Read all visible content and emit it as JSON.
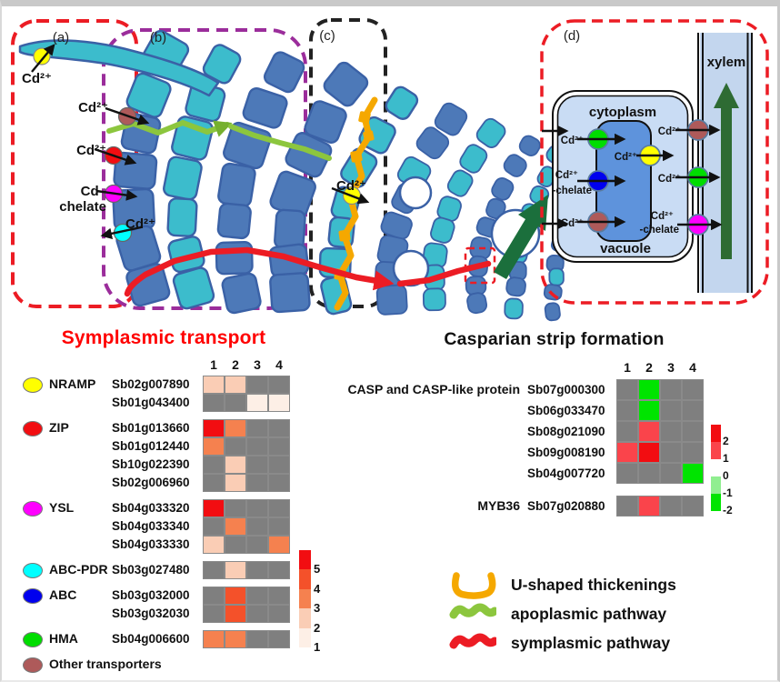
{
  "diagram": {
    "panel_labels": {
      "a": "(a)",
      "b": "(b)",
      "c": "(c)",
      "d": "(d)"
    },
    "labels": {
      "cd_root_hair": "Cd²⁺",
      "cd_influx_top": "Cd²⁺",
      "cd_influx_mid": "Cd²⁺",
      "cd_chelate_l1": "Cd–",
      "cd_chelate_l2": "chelate",
      "cd_efflux": "Cd²⁺",
      "cd_casparian": "Cd²⁺"
    },
    "panel_d": {
      "cytoplasm": "cytoplasm",
      "vacuole": "vacuole",
      "xylem": "xylem",
      "cd_vac_in_top": "Cd²⁺",
      "cd_vac_out": "Cd²⁺",
      "cd_chel_l1": "Cd²⁺",
      "cd_chel_l2": "-chelate",
      "cd_vac_in_bot": "Cd²⁺",
      "cd_xyl_top": "Cd²⁺",
      "cd_xyl_mid": "Cd²⁺",
      "cd_xyl_bot_l1": "Cd²⁺",
      "cd_xyl_bot_l2": "-chelate"
    },
    "colors": {
      "cell_blue": "#4D79B8",
      "cell_teal": "#3CBCCC",
      "cell_stroke": "#3A61A6",
      "box_a": "#EC1C24",
      "box_b": "#9B2D9B",
      "box_c": "#222222",
      "apoplasmic": "#8CC63E",
      "symplasmic": "#EC1C24",
      "thickenings": "#F5A800",
      "cytoplasm": "#C9DCF4",
      "vacuole_fill": "#5E93DC",
      "xylem_fill": "#C3D6EE",
      "big_arrow_green": "#1B6F3C"
    }
  },
  "symplasmic": {
    "title": "Symplasmic transport",
    "columns": [
      "1",
      "2",
      "3",
      "4"
    ],
    "families": [
      {
        "name": "NRAMP",
        "color": "#FFFF00",
        "genes": [
          {
            "id": "Sb02g007890",
            "values": [
              2,
              2,
              null,
              null
            ]
          },
          {
            "id": "Sb01g043400",
            "values": [
              null,
              null,
              1,
              1
            ]
          }
        ]
      },
      {
        "name": "ZIP",
        "color": "#F20D11",
        "genes": [
          {
            "id": "Sb01g013660",
            "values": [
              5,
              3,
              null,
              null
            ]
          },
          {
            "id": "Sb01g012440",
            "values": [
              3,
              null,
              null,
              null
            ]
          },
          {
            "id": "Sb10g022390",
            "values": [
              null,
              2,
              null,
              null
            ]
          },
          {
            "id": "Sb02g006960",
            "values": [
              null,
              2,
              null,
              null
            ]
          }
        ]
      },
      {
        "name": "YSL",
        "color": "#FF00FF",
        "genes": [
          {
            "id": "Sb04g033320",
            "values": [
              5,
              null,
              null,
              null
            ]
          },
          {
            "id": "Sb04g033340",
            "values": [
              null,
              3,
              null,
              null
            ]
          },
          {
            "id": "Sb04g033330",
            "values": [
              2,
              null,
              null,
              3
            ]
          }
        ]
      },
      {
        "name": "ABC-PDR",
        "color": "#00FFFF",
        "genes": [
          {
            "id": "Sb03g027480",
            "values": [
              null,
              2,
              null,
              null
            ]
          }
        ]
      },
      {
        "name": "ABC",
        "color": "#0000EE",
        "genes": [
          {
            "id": "Sb03g032000",
            "values": [
              null,
              4,
              null,
              null
            ]
          },
          {
            "id": "Sb03g032030",
            "values": [
              null,
              4,
              null,
              null
            ]
          }
        ]
      },
      {
        "name": "HMA",
        "color": "#00DD00",
        "genes": [
          {
            "id": "Sb04g006600",
            "values": [
              3,
              3,
              null,
              null
            ]
          }
        ]
      },
      {
        "name": "Other transporters",
        "color": "#AE5A5A",
        "genes": []
      }
    ],
    "scale": {
      "order": [
        5,
        4,
        3,
        2,
        1
      ],
      "colors": {
        "5": "#F20D11",
        "4": "#F4512A",
        "3": "#F5814F",
        "2": "#FACDB5",
        "1": "#FDEFE6"
      },
      "na_color": "#7F7F7F"
    }
  },
  "casparian": {
    "title": "Casparian strip formation",
    "columns": [
      "1",
      "2",
      "3",
      "4"
    ],
    "groups": [
      {
        "label": "CASP and CASP-like protein",
        "genes": [
          {
            "id": "Sb07g000300",
            "values": [
              null,
              -2,
              null,
              null
            ]
          },
          {
            "id": "Sb06g033470",
            "values": [
              null,
              -2,
              null,
              null
            ]
          },
          {
            "id": "Sb08g021090",
            "values": [
              null,
              1,
              null,
              null
            ]
          },
          {
            "id": "Sb09g008190",
            "values": [
              1,
              2,
              null,
              null
            ]
          },
          {
            "id": "Sb04g007720",
            "values": [
              null,
              null,
              null,
              -2
            ]
          }
        ]
      },
      {
        "label": "MYB36",
        "genes": [
          {
            "id": "Sb07g020880",
            "values": [
              null,
              1,
              null,
              null
            ]
          }
        ]
      }
    ],
    "scale": {
      "order": [
        2,
        1,
        0,
        -1,
        -2
      ],
      "colors": {
        "2": "#F20D11",
        "1": "#FA444B",
        "0": "#FFFFFF",
        "-1": "#90EE90",
        "-2": "#00E400"
      },
      "na_color": "#7F7F7F"
    }
  },
  "legend": {
    "items": [
      {
        "label": "U-shaped thickenings",
        "symbol": "u-shape",
        "color": "#F5A800"
      },
      {
        "label": "apoplasmic pathway",
        "symbol": "wavy-line",
        "color": "#8CC63E"
      },
      {
        "label": "symplasmic pathway",
        "symbol": "wavy-line",
        "color": "#EC1C24"
      }
    ]
  }
}
